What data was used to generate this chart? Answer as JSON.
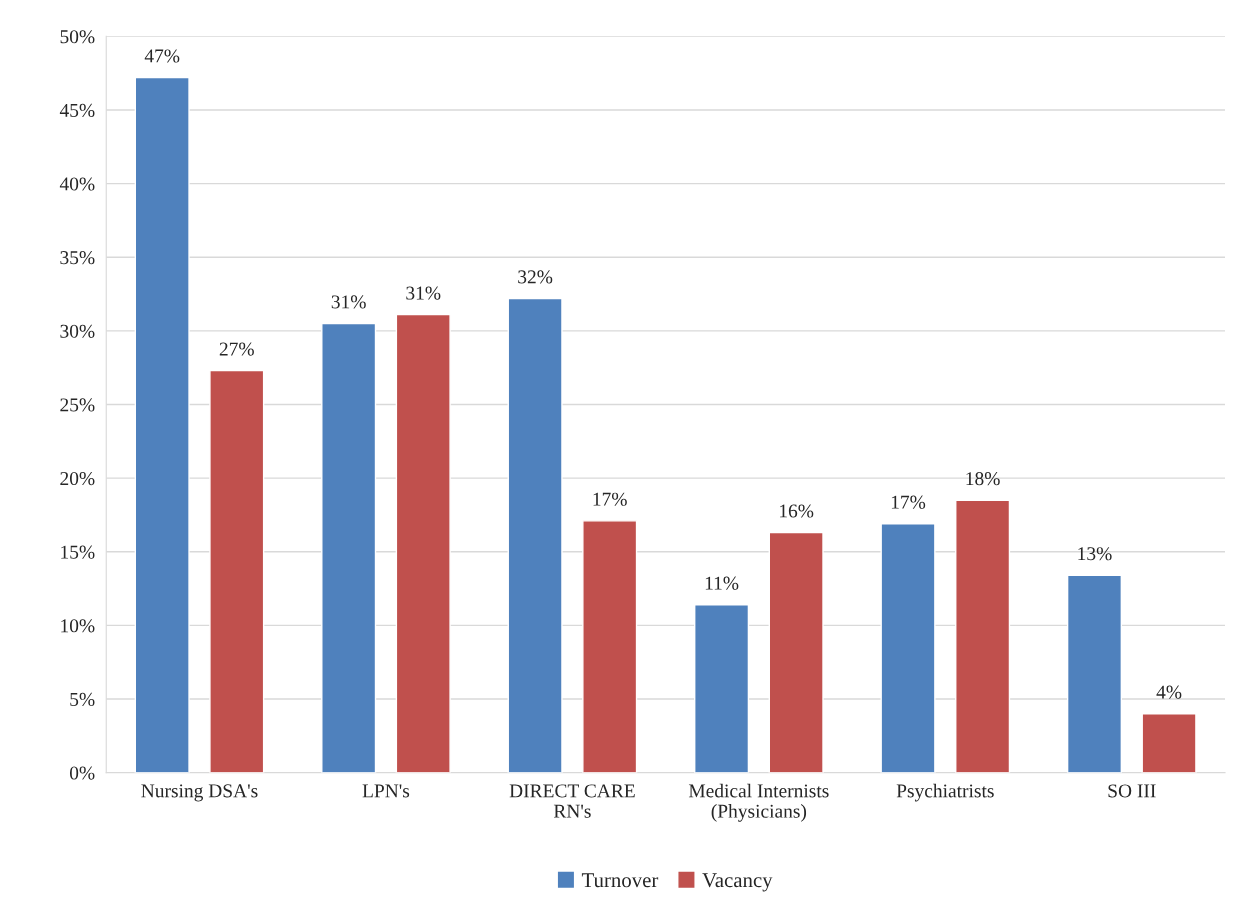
{
  "chart_data": {
    "type": "bar",
    "categories": [
      "Nursing DSA's",
      "LPN's",
      "DIRECT CARE\nRN's",
      "Medical Internists\n(Physicians)",
      "Psychiatrists",
      "SO III"
    ],
    "series": [
      {
        "name": "Turnover",
        "color": "#4f81bd",
        "values": [
          47.2,
          30.5,
          32.2,
          11.4,
          16.9,
          13.4
        ],
        "value_labels": [
          "47%",
          "31%",
          "32%",
          "11%",
          "17%",
          "13%"
        ]
      },
      {
        "name": "Vacancy",
        "color": "#c0504d",
        "values": [
          27.3,
          31.1,
          17.1,
          16.3,
          18.5,
          4.0
        ],
        "value_labels": [
          "27%",
          "31%",
          "17%",
          "16%",
          "18%",
          "4%"
        ]
      }
    ],
    "ylim": [
      0,
      50
    ],
    "yticks": [
      {
        "value": 0,
        "label": "0%"
      },
      {
        "value": 5,
        "label": "5%"
      },
      {
        "value": 10,
        "label": "10%"
      },
      {
        "value": 15,
        "label": "15%"
      },
      {
        "value": 20,
        "label": "20%"
      },
      {
        "value": 25,
        "label": "25%"
      },
      {
        "value": 30,
        "label": "30%"
      },
      {
        "value": 35,
        "label": "35%"
      },
      {
        "value": 40,
        "label": "40%"
      },
      {
        "value": 45,
        "label": "45%"
      },
      {
        "value": 50,
        "label": "50%"
      }
    ],
    "grid": "y",
    "legend": "bottom"
  }
}
